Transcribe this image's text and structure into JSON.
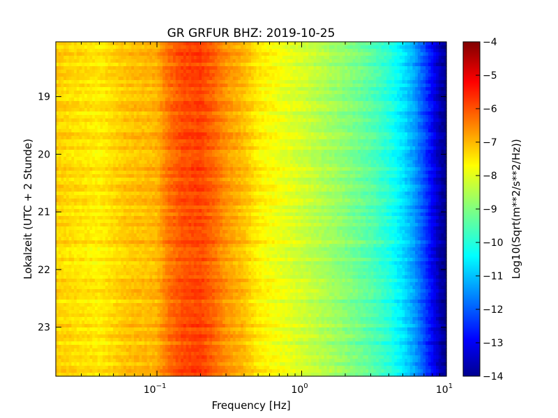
{
  "chart_data": {
    "type": "heatmap",
    "title": "GR GRFUR BHZ: 2019-10-25",
    "xlabel": "Frequency [Hz]",
    "ylabel": "Lokalzeit (UTC + 2 Stunde)",
    "xscale": "log",
    "xlim": [
      0.02,
      10
    ],
    "x_ticks": [
      {
        "value": 0.1,
        "base": "10",
        "exp": "−1"
      },
      {
        "value": 1,
        "base": "10",
        "exp": "0"
      },
      {
        "value": 10,
        "base": "10",
        "exp": "1"
      }
    ],
    "ylim": [
      18.05,
      23.85
    ],
    "y_inverted": true,
    "y_ticks": [
      19,
      20,
      21,
      22,
      23
    ],
    "colorbar": {
      "label": "Log10(Sqrt(m**2/s**2/Hz))",
      "range": [
        -14,
        -4
      ],
      "ticks": [
        -4,
        -5,
        -6,
        -7,
        -8,
        -9,
        -10,
        -11,
        -12,
        -13,
        -14
      ],
      "colormap": "jet"
    },
    "spectrum_profile": {
      "frequency_hz": [
        0.02,
        0.04,
        0.06,
        0.08,
        0.1,
        0.12,
        0.15,
        0.2,
        0.25,
        0.3,
        0.4,
        0.5,
        0.7,
        1.0,
        1.5,
        2.0,
        3.0,
        4.0,
        5.0,
        6.0,
        7.0,
        8.0,
        9.0,
        10.0
      ],
      "log10_amplitude": [
        -7.3,
        -7.6,
        -7.2,
        -7.1,
        -7.0,
        -6.4,
        -6.0,
        -5.9,
        -6.3,
        -6.7,
        -7.1,
        -7.6,
        -7.9,
        -8.2,
        -8.6,
        -8.9,
        -9.4,
        -9.9,
        -10.5,
        -11.2,
        -12.0,
        -12.8,
        -13.5,
        -13.9
      ]
    }
  }
}
